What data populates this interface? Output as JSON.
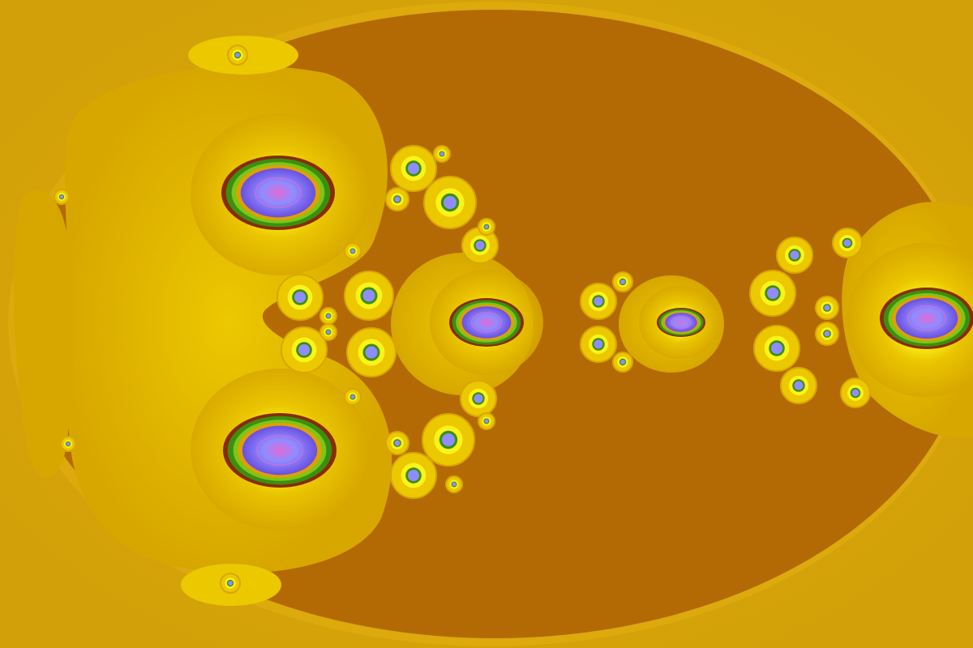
{
  "image": {
    "kind": "fractal-render",
    "caption": "",
    "palette": {
      "outer_background": "#d2a008",
      "outer_ring": "#dcaa0c",
      "inner_field": "#b46a04",
      "blob_edge": "#d7a700",
      "blob_mid": "#ecc800",
      "blob_bright": "#ffff20",
      "halo_red": "#8a2a05",
      "ring_green": "#3b8f10",
      "ring_lime": "#7dc518",
      "ring_orange": "#e0a000",
      "core_blue": "#8f8cff",
      "core_violet": "#6a4fe0",
      "core_pattern": "#e06bd8"
    }
  }
}
